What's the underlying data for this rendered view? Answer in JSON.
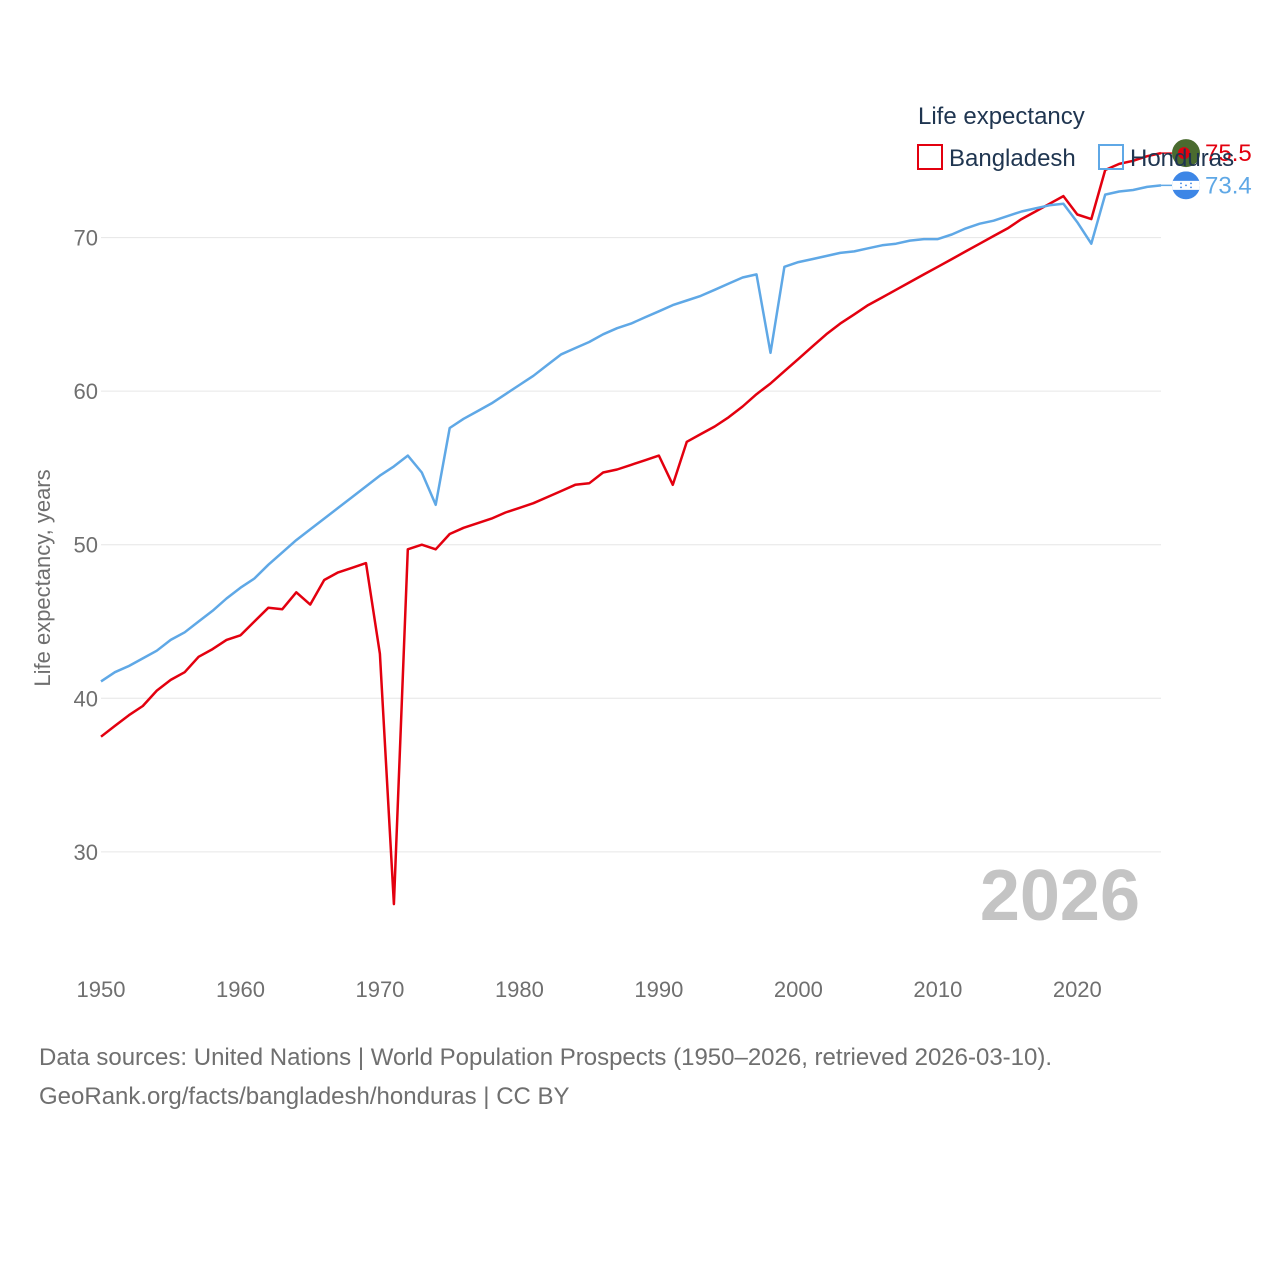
{
  "chart_data": {
    "type": "line",
    "ylabel": "Life expectancy, years",
    "xlim": [
      1950,
      2026
    ],
    "ylim": [
      24,
      80
    ],
    "x_ticks": [
      1950,
      1960,
      1970,
      1980,
      1990,
      2000,
      2010,
      2020
    ],
    "y_ticks": [
      30,
      40,
      50,
      60,
      70
    ],
    "grid": true,
    "legend": {
      "title": "Life expectancy",
      "position": "top-right"
    },
    "current_year": "2026",
    "years": [
      1950,
      1951,
      1952,
      1953,
      1954,
      1955,
      1956,
      1957,
      1958,
      1959,
      1960,
      1961,
      1962,
      1963,
      1964,
      1965,
      1966,
      1967,
      1968,
      1969,
      1970,
      1971,
      1972,
      1973,
      1974,
      1975,
      1976,
      1977,
      1978,
      1979,
      1980,
      1981,
      1982,
      1983,
      1984,
      1985,
      1986,
      1987,
      1988,
      1989,
      1990,
      1991,
      1992,
      1993,
      1994,
      1995,
      1996,
      1997,
      1998,
      1999,
      2000,
      2001,
      2002,
      2003,
      2004,
      2005,
      2006,
      2007,
      2008,
      2009,
      2010,
      2011,
      2012,
      2013,
      2014,
      2015,
      2016,
      2017,
      2018,
      2019,
      2020,
      2021,
      2022,
      2023,
      2024,
      2025,
      2026
    ],
    "series": [
      {
        "name": "Bangladesh",
        "color": "#e3000f",
        "end_label": "75.5",
        "flag_icon": "bangladesh-flag-icon",
        "values": [
          37.5,
          38.2,
          38.9,
          39.5,
          40.5,
          41.2,
          41.7,
          42.7,
          43.2,
          43.8,
          44.1,
          45.0,
          45.9,
          45.8,
          46.9,
          46.1,
          47.7,
          48.2,
          48.5,
          48.8,
          42.9,
          26.6,
          49.7,
          50.0,
          49.7,
          50.7,
          51.1,
          51.4,
          51.7,
          52.1,
          52.4,
          52.7,
          53.1,
          53.5,
          53.9,
          54.0,
          54.7,
          54.9,
          55.2,
          55.5,
          55.8,
          53.9,
          56.7,
          57.2,
          57.7,
          58.3,
          59.0,
          59.8,
          60.5,
          61.3,
          62.1,
          62.9,
          63.7,
          64.4,
          65.0,
          65.6,
          66.1,
          66.6,
          67.1,
          67.6,
          68.1,
          68.6,
          69.1,
          69.6,
          70.1,
          70.6,
          71.2,
          71.7,
          72.2,
          72.7,
          71.5,
          71.2,
          74.4,
          74.8,
          75.0,
          75.3,
          75.5
        ]
      },
      {
        "name": "Honduras",
        "color": "#5fa8e6",
        "end_label": "73.4",
        "flag_icon": "honduras-flag-icon",
        "values": [
          41.1,
          41.7,
          42.1,
          42.6,
          43.1,
          43.8,
          44.3,
          45.0,
          45.7,
          46.5,
          47.2,
          47.8,
          48.7,
          49.5,
          50.3,
          51.0,
          51.7,
          52.4,
          53.1,
          53.8,
          54.5,
          55.1,
          55.8,
          54.7,
          52.6,
          57.6,
          58.2,
          58.7,
          59.2,
          59.8,
          60.4,
          61.0,
          61.7,
          62.4,
          62.8,
          63.2,
          63.7,
          64.1,
          64.4,
          64.8,
          65.2,
          65.6,
          65.9,
          66.2,
          66.6,
          67.0,
          67.4,
          67.6,
          62.5,
          68.1,
          68.4,
          68.6,
          68.8,
          69.0,
          69.1,
          69.3,
          69.5,
          69.6,
          69.8,
          69.9,
          69.9,
          70.2,
          70.6,
          70.9,
          71.1,
          71.4,
          71.7,
          71.9,
          72.1,
          72.2,
          71.0,
          69.6,
          72.8,
          73.0,
          73.1,
          73.3,
          73.4
        ]
      }
    ]
  },
  "footer": {
    "sources": "Data sources: United Nations | World Population Prospects (1950–2026, retrieved 2026-03-10).",
    "credit": "GeoRank.org/facts/bangladesh/honduras | CC BY"
  }
}
